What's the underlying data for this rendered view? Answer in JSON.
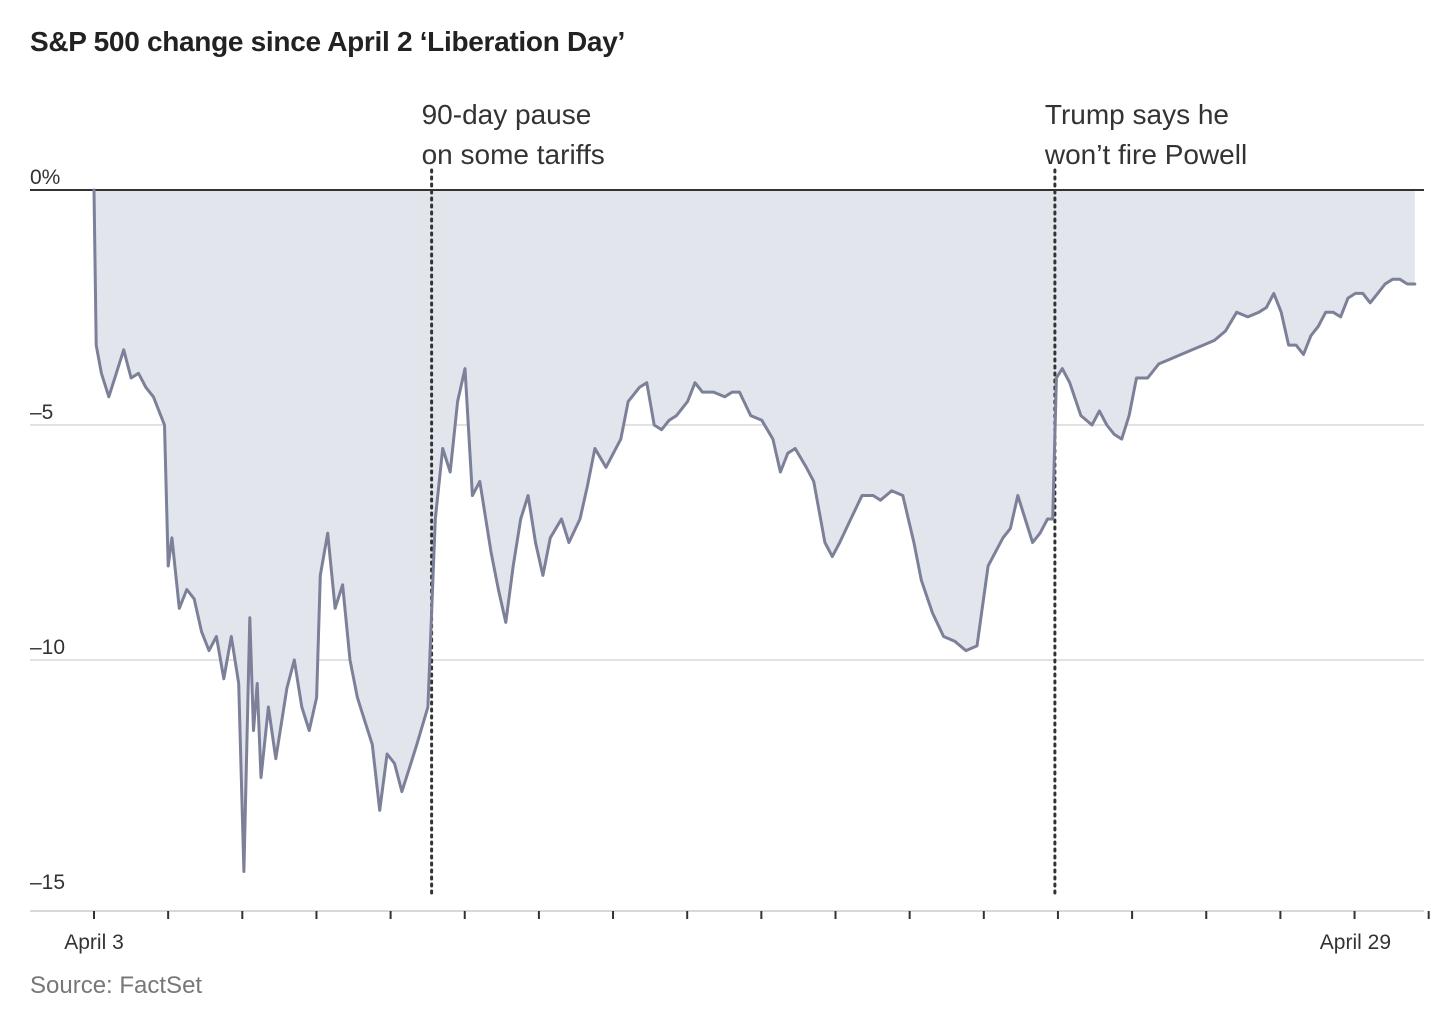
{
  "title": "S&P 500 change since April 2 ‘Liberation Day’",
  "source": "Source: FactSet",
  "colors": {
    "line": "#7c8098",
    "area": "#e3e5ec",
    "grid": "#d8d8d8",
    "zero": "#333333",
    "annotation_line": "#333333"
  },
  "chart_data": {
    "type": "area",
    "title": "S&P 500 change since April 2 ‘Liberation Day’",
    "xlabel": "",
    "ylabel": "",
    "x_range": [
      "April 3",
      "April 29"
    ],
    "ylim": [
      -15,
      0
    ],
    "yticks": [
      {
        "value": 0,
        "label": "0%"
      },
      {
        "value": -5,
        "label": "–5"
      },
      {
        "value": -10,
        "label": "–10"
      },
      {
        "value": -15,
        "label": "–15"
      }
    ],
    "xtick_labels": [
      {
        "label": "April 3",
        "position": 0
      },
      {
        "label": "April 29",
        "position": 17
      }
    ],
    "minor_tick_count": 19,
    "grid": true,
    "annotations": [
      {
        "position": 4.55,
        "lines": [
          "90-day pause",
          "on some tariffs"
        ]
      },
      {
        "position": 12.95,
        "lines": [
          "Trump says he",
          "won’t fire Powell"
        ]
      }
    ],
    "series": [
      {
        "name": "",
        "points": [
          [
            0.0,
            0.0
          ],
          [
            0.03,
            -3.3
          ],
          [
            0.1,
            -3.9
          ],
          [
            0.2,
            -4.4
          ],
          [
            0.3,
            -3.9
          ],
          [
            0.4,
            -3.4
          ],
          [
            0.5,
            -4.0
          ],
          [
            0.6,
            -3.9
          ],
          [
            0.7,
            -4.2
          ],
          [
            0.8,
            -4.4
          ],
          [
            0.95,
            -5.0
          ],
          [
            1.0,
            -8.0
          ],
          [
            1.05,
            -7.4
          ],
          [
            1.15,
            -8.9
          ],
          [
            1.25,
            -8.5
          ],
          [
            1.35,
            -8.7
          ],
          [
            1.45,
            -9.4
          ],
          [
            1.55,
            -9.8
          ],
          [
            1.65,
            -9.5
          ],
          [
            1.75,
            -10.4
          ],
          [
            1.85,
            -9.5
          ],
          [
            1.95,
            -10.5
          ],
          [
            2.02,
            -14.5
          ],
          [
            2.1,
            -9.1
          ],
          [
            2.15,
            -11.5
          ],
          [
            2.2,
            -10.5
          ],
          [
            2.25,
            -12.5
          ],
          [
            2.35,
            -11.0
          ],
          [
            2.45,
            -12.1
          ],
          [
            2.6,
            -10.6
          ],
          [
            2.7,
            -10.0
          ],
          [
            2.8,
            -11.0
          ],
          [
            2.9,
            -11.5
          ],
          [
            3.0,
            -10.8
          ],
          [
            3.05,
            -8.2
          ],
          [
            3.15,
            -7.3
          ],
          [
            3.25,
            -8.9
          ],
          [
            3.35,
            -8.4
          ],
          [
            3.45,
            -10.0
          ],
          [
            3.55,
            -10.8
          ],
          [
            3.65,
            -11.3
          ],
          [
            3.75,
            -11.8
          ],
          [
            3.85,
            -13.2
          ],
          [
            3.95,
            -12.0
          ],
          [
            4.05,
            -12.2
          ],
          [
            4.15,
            -12.8
          ],
          [
            4.25,
            -12.3
          ],
          [
            4.35,
            -11.8
          ],
          [
            4.5,
            -11.0
          ],
          [
            4.6,
            -7.0
          ],
          [
            4.7,
            -5.5
          ],
          [
            4.8,
            -6.0
          ],
          [
            4.9,
            -4.5
          ],
          [
            5.0,
            -3.8
          ],
          [
            5.1,
            -6.5
          ],
          [
            5.2,
            -6.2
          ],
          [
            5.35,
            -7.7
          ],
          [
            5.45,
            -8.5
          ],
          [
            5.55,
            -9.2
          ],
          [
            5.65,
            -8.0
          ],
          [
            5.75,
            -7.0
          ],
          [
            5.85,
            -6.5
          ],
          [
            5.95,
            -7.5
          ],
          [
            6.05,
            -8.2
          ],
          [
            6.15,
            -7.4
          ],
          [
            6.3,
            -7.0
          ],
          [
            6.4,
            -7.5
          ],
          [
            6.55,
            -7.0
          ],
          [
            6.65,
            -6.3
          ],
          [
            6.75,
            -5.5
          ],
          [
            6.9,
            -5.9
          ],
          [
            7.0,
            -5.6
          ],
          [
            7.1,
            -5.3
          ],
          [
            7.2,
            -4.5
          ],
          [
            7.35,
            -4.2
          ],
          [
            7.45,
            -4.1
          ],
          [
            7.55,
            -5.0
          ],
          [
            7.65,
            -5.1
          ],
          [
            7.75,
            -4.9
          ],
          [
            7.85,
            -4.8
          ],
          [
            8.0,
            -4.5
          ],
          [
            8.1,
            -4.1
          ],
          [
            8.2,
            -4.3
          ],
          [
            8.35,
            -4.3
          ],
          [
            8.5,
            -4.4
          ],
          [
            8.6,
            -4.3
          ],
          [
            8.7,
            -4.3
          ],
          [
            8.85,
            -4.8
          ],
          [
            9.0,
            -4.9
          ],
          [
            9.15,
            -5.3
          ],
          [
            9.25,
            -6.0
          ],
          [
            9.35,
            -5.6
          ],
          [
            9.45,
            -5.5
          ],
          [
            9.6,
            -5.9
          ],
          [
            9.7,
            -6.2
          ],
          [
            9.85,
            -7.5
          ],
          [
            9.95,
            -7.8
          ],
          [
            10.05,
            -7.5
          ],
          [
            10.2,
            -7.0
          ],
          [
            10.35,
            -6.5
          ],
          [
            10.5,
            -6.5
          ],
          [
            10.6,
            -6.6
          ],
          [
            10.75,
            -6.4
          ],
          [
            10.9,
            -6.5
          ],
          [
            11.05,
            -7.5
          ],
          [
            11.15,
            -8.3
          ],
          [
            11.3,
            -9.0
          ],
          [
            11.45,
            -9.5
          ],
          [
            11.6,
            -9.6
          ],
          [
            11.75,
            -9.8
          ],
          [
            11.9,
            -9.7
          ],
          [
            12.05,
            -8.0
          ],
          [
            12.15,
            -7.7
          ],
          [
            12.25,
            -7.4
          ],
          [
            12.35,
            -7.2
          ],
          [
            12.45,
            -6.5
          ],
          [
            12.55,
            -7.0
          ],
          [
            12.65,
            -7.5
          ],
          [
            12.75,
            -7.3
          ],
          [
            12.85,
            -7.0
          ],
          [
            12.92,
            -7.0
          ],
          [
            12.97,
            -4.0
          ],
          [
            13.05,
            -3.8
          ],
          [
            13.15,
            -4.1
          ],
          [
            13.3,
            -4.8
          ],
          [
            13.45,
            -5.0
          ],
          [
            13.55,
            -4.7
          ],
          [
            13.65,
            -5.0
          ],
          [
            13.75,
            -5.2
          ],
          [
            13.85,
            -5.3
          ],
          [
            13.95,
            -4.8
          ],
          [
            14.05,
            -4.0
          ],
          [
            14.2,
            -4.0
          ],
          [
            14.35,
            -3.7
          ],
          [
            14.5,
            -3.6
          ],
          [
            14.65,
            -3.5
          ],
          [
            14.8,
            -3.4
          ],
          [
            14.95,
            -3.3
          ],
          [
            15.1,
            -3.2
          ],
          [
            15.25,
            -3.0
          ],
          [
            15.4,
            -2.6
          ],
          [
            15.55,
            -2.7
          ],
          [
            15.7,
            -2.6
          ],
          [
            15.8,
            -2.5
          ],
          [
            15.9,
            -2.2
          ],
          [
            16.0,
            -2.6
          ],
          [
            16.1,
            -3.3
          ],
          [
            16.2,
            -3.3
          ],
          [
            16.3,
            -3.5
          ],
          [
            16.4,
            -3.1
          ],
          [
            16.5,
            -2.9
          ],
          [
            16.6,
            -2.6
          ],
          [
            16.7,
            -2.6
          ],
          [
            16.8,
            -2.7
          ],
          [
            16.9,
            -2.3
          ],
          [
            17.0,
            -2.2
          ],
          [
            17.1,
            -2.2
          ],
          [
            17.2,
            -2.4
          ],
          [
            17.3,
            -2.2
          ],
          [
            17.4,
            -2.0
          ],
          [
            17.5,
            -1.9
          ],
          [
            17.6,
            -1.9
          ],
          [
            17.7,
            -2.0
          ],
          [
            17.8,
            -2.0
          ]
        ]
      }
    ]
  }
}
